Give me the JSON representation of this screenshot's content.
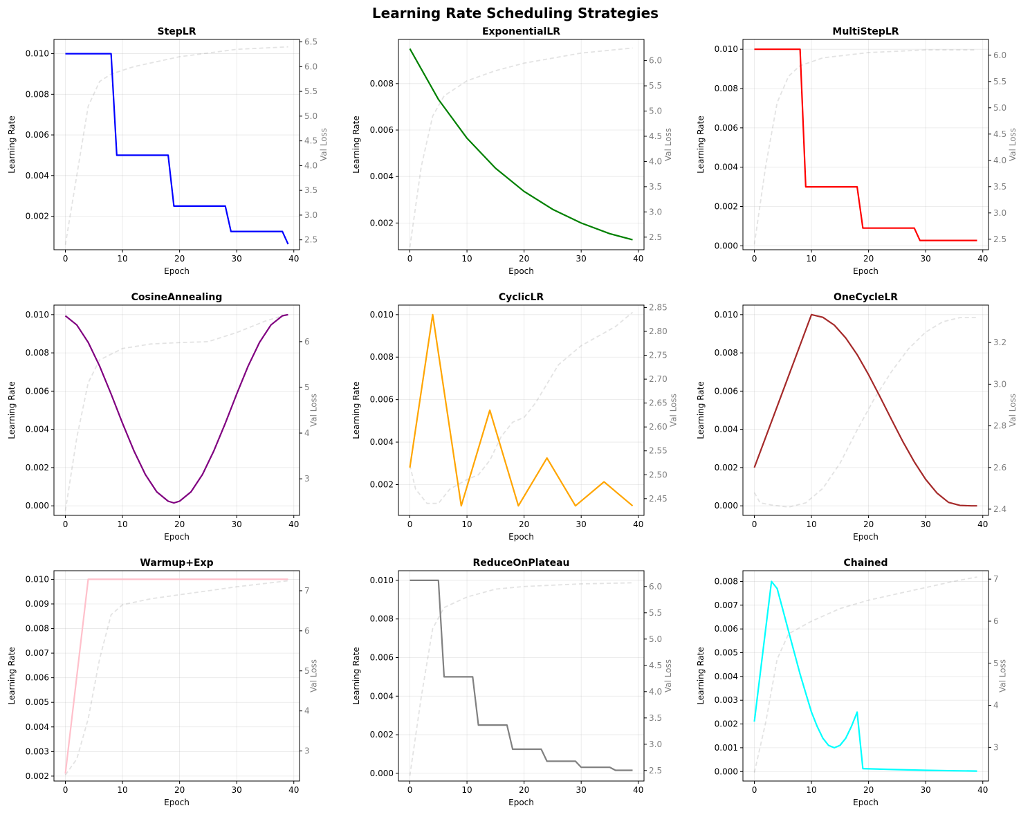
{
  "figure": {
    "title": "Learning Rate Scheduling Strategies"
  },
  "chart_data": [
    {
      "type": "line",
      "title": "StepLR",
      "xlabel": "Epoch",
      "ylabel": "Learning Rate",
      "y2label": "Val Loss",
      "xlim": [
        -2,
        41
      ],
      "ylim": [
        0.00035,
        0.0107
      ],
      "y2lim": [
        2.3,
        6.55
      ],
      "xticks": [
        0,
        10,
        20,
        30,
        40
      ],
      "yticks": [
        0.002,
        0.004,
        0.006,
        0.008,
        0.01
      ],
      "y2ticks": [
        2.5,
        3.0,
        3.5,
        4.0,
        4.5,
        5.0,
        5.5,
        6.0,
        6.5
      ],
      "ytickfmt": 3,
      "y2tickfmt": 1,
      "color": "#0000ff",
      "lr": [
        [
          0,
          0.01
        ],
        [
          8,
          0.01
        ],
        [
          9,
          0.005
        ],
        [
          18,
          0.005
        ],
        [
          19,
          0.0025
        ],
        [
          28,
          0.0025
        ],
        [
          29,
          0.00125
        ],
        [
          38,
          0.00125
        ],
        [
          39,
          0.000625
        ]
      ],
      "val": [
        [
          0,
          2.4
        ],
        [
          2,
          3.8
        ],
        [
          4,
          5.2
        ],
        [
          6,
          5.7
        ],
        [
          8,
          5.85
        ],
        [
          12,
          6.0
        ],
        [
          20,
          6.2
        ],
        [
          30,
          6.35
        ],
        [
          39,
          6.4
        ]
      ],
      "grid": true
    },
    {
      "type": "line",
      "title": "ExponentialLR",
      "xlabel": "Epoch",
      "ylabel": "Learning Rate",
      "y2label": "Val Loss",
      "xlim": [
        -2,
        41
      ],
      "ylim": [
        0.00085,
        0.0099
      ],
      "y2lim": [
        2.25,
        6.42
      ],
      "xticks": [
        0,
        10,
        20,
        30,
        40
      ],
      "yticks": [
        0.002,
        0.004,
        0.006,
        0.008
      ],
      "y2ticks": [
        2.5,
        3.0,
        3.5,
        4.0,
        4.5,
        5.0,
        5.5,
        6.0
      ],
      "ytickfmt": 3,
      "y2tickfmt": 1,
      "color": "#008000",
      "lr": [
        [
          0,
          0.0095
        ],
        [
          5,
          0.00732
        ],
        [
          10,
          0.00565
        ],
        [
          15,
          0.00436
        ],
        [
          20,
          0.00336
        ],
        [
          25,
          0.00259
        ],
        [
          30,
          0.002
        ],
        [
          35,
          0.00154
        ],
        [
          39,
          0.00128
        ]
      ],
      "val": [
        [
          0,
          2.3
        ],
        [
          2,
          3.9
        ],
        [
          4,
          4.9
        ],
        [
          6,
          5.3
        ],
        [
          10,
          5.6
        ],
        [
          15,
          5.8
        ],
        [
          20,
          5.95
        ],
        [
          30,
          6.15
        ],
        [
          39,
          6.25
        ]
      ],
      "grid": true
    },
    {
      "type": "line",
      "title": "MultiStepLR",
      "xlabel": "Epoch",
      "ylabel": "Learning Rate",
      "y2label": "Val Loss",
      "xlim": [
        -2,
        41
      ],
      "ylim": [
        -0.0002,
        0.0105
      ],
      "y2lim": [
        2.3,
        6.3
      ],
      "xticks": [
        0,
        10,
        20,
        30,
        40
      ],
      "yticks": [
        0.0,
        0.002,
        0.004,
        0.006,
        0.008,
        0.01
      ],
      "y2ticks": [
        2.5,
        3.0,
        3.5,
        4.0,
        4.5,
        5.0,
        5.5,
        6.0
      ],
      "ytickfmt": 3,
      "y2tickfmt": 1,
      "color": "#ff0000",
      "lr": [
        [
          0,
          0.01
        ],
        [
          8,
          0.01
        ],
        [
          9,
          0.003
        ],
        [
          18,
          0.003
        ],
        [
          19,
          0.0009
        ],
        [
          28,
          0.0009
        ],
        [
          29,
          0.00027
        ],
        [
          39,
          0.00027
        ]
      ],
      "val": [
        [
          0,
          2.4
        ],
        [
          2,
          3.9
        ],
        [
          4,
          5.1
        ],
        [
          6,
          5.6
        ],
        [
          8,
          5.8
        ],
        [
          12,
          5.95
        ],
        [
          20,
          6.05
        ],
        [
          30,
          6.1
        ],
        [
          39,
          6.1
        ]
      ],
      "grid": true
    },
    {
      "type": "line",
      "title": "CosineAnnealing",
      "xlabel": "Epoch",
      "ylabel": "Learning Rate",
      "y2label": "Val Loss",
      "xlim": [
        -2,
        41
      ],
      "ylim": [
        -0.0005,
        0.0105
      ],
      "y2lim": [
        2.2,
        6.8
      ],
      "xticks": [
        0,
        10,
        20,
        30,
        40
      ],
      "yticks": [
        0.0,
        0.002,
        0.004,
        0.006,
        0.008,
        0.01
      ],
      "y2ticks": [
        3,
        4,
        5,
        6
      ],
      "ytickfmt": 3,
      "y2tickfmt": 0,
      "color": "#800080",
      "lr": [
        [
          0,
          0.00994
        ],
        [
          2,
          0.00946
        ],
        [
          4,
          0.00855
        ],
        [
          6,
          0.00731
        ],
        [
          8,
          0.00585
        ],
        [
          10,
          0.00432
        ],
        [
          12,
          0.00288
        ],
        [
          14,
          0.00164
        ],
        [
          16,
          0.00073
        ],
        [
          18,
          0.00024
        ],
        [
          19,
          0.00015
        ],
        [
          20,
          0.00024
        ],
        [
          22,
          0.00073
        ],
        [
          24,
          0.00164
        ],
        [
          26,
          0.00288
        ],
        [
          28,
          0.00432
        ],
        [
          30,
          0.00585
        ],
        [
          32,
          0.00731
        ],
        [
          34,
          0.00855
        ],
        [
          36,
          0.00946
        ],
        [
          38,
          0.00994
        ],
        [
          39,
          0.01
        ]
      ],
      "val": [
        [
          0,
          2.3
        ],
        [
          2,
          3.9
        ],
        [
          4,
          5.1
        ],
        [
          6,
          5.6
        ],
        [
          10,
          5.85
        ],
        [
          15,
          5.95
        ],
        [
          20,
          5.98
        ],
        [
          25,
          6.0
        ],
        [
          30,
          6.2
        ],
        [
          35,
          6.45
        ],
        [
          39,
          6.6
        ]
      ],
      "grid": true
    },
    {
      "type": "line",
      "title": "CyclicLR",
      "xlabel": "Epoch",
      "ylabel": "Learning Rate",
      "y2label": "Val Loss",
      "xlim": [
        -2,
        41
      ],
      "ylim": [
        0.00055,
        0.01045
      ],
      "y2lim": [
        2.415,
        2.855
      ],
      "xticks": [
        0,
        10,
        20,
        30,
        40
      ],
      "yticks": [
        0.002,
        0.004,
        0.006,
        0.008,
        0.01
      ],
      "y2ticks": [
        2.45,
        2.5,
        2.55,
        2.6,
        2.65,
        2.7,
        2.75,
        2.8,
        2.85
      ],
      "ytickfmt": 3,
      "y2tickfmt": 2,
      "color": "#ffa500",
      "lr": [
        [
          0,
          0.0028
        ],
        [
          4,
          0.01
        ],
        [
          9,
          0.001
        ],
        [
          14,
          0.0055
        ],
        [
          19,
          0.001
        ],
        [
          24,
          0.00325
        ],
        [
          29,
          0.001
        ],
        [
          34,
          0.00213
        ],
        [
          39,
          0.001
        ]
      ],
      "val": [
        [
          0,
          2.52
        ],
        [
          1,
          2.47
        ],
        [
          3,
          2.44
        ],
        [
          5,
          2.44
        ],
        [
          7,
          2.47
        ],
        [
          10,
          2.49
        ],
        [
          12,
          2.5
        ],
        [
          14,
          2.53
        ],
        [
          16,
          2.58
        ],
        [
          18,
          2.61
        ],
        [
          20,
          2.62
        ],
        [
          22,
          2.65
        ],
        [
          24,
          2.69
        ],
        [
          26,
          2.73
        ],
        [
          28,
          2.75
        ],
        [
          30,
          2.77
        ],
        [
          33,
          2.79
        ],
        [
          36,
          2.81
        ],
        [
          39,
          2.84
        ]
      ],
      "grid": true
    },
    {
      "type": "line",
      "title": "OneCycleLR",
      "xlabel": "Epoch",
      "ylabel": "Learning Rate",
      "y2label": "Val Loss",
      "xlim": [
        -2,
        41
      ],
      "ylim": [
        -0.0005,
        0.0105
      ],
      "y2lim": [
        2.37,
        3.38
      ],
      "xticks": [
        0,
        10,
        20,
        30,
        40
      ],
      "yticks": [
        0.0,
        0.002,
        0.004,
        0.006,
        0.008,
        0.01
      ],
      "y2ticks": [
        2.4,
        2.6,
        2.8,
        3.0,
        3.2
      ],
      "ytickfmt": 3,
      "y2tickfmt": 1,
      "color": "#a52a2a",
      "lr": [
        [
          0,
          0.002
        ],
        [
          10,
          0.01
        ],
        [
          12,
          0.00986
        ],
        [
          14,
          0.00945
        ],
        [
          16,
          0.00878
        ],
        [
          18,
          0.00791
        ],
        [
          20,
          0.00686
        ],
        [
          22,
          0.00571
        ],
        [
          24,
          0.00452
        ],
        [
          26,
          0.00336
        ],
        [
          28,
          0.0023
        ],
        [
          30,
          0.00138
        ],
        [
          32,
          0.00066
        ],
        [
          34,
          0.00018
        ],
        [
          36,
          2e-05
        ],
        [
          38,
          0.0
        ],
        [
          39,
          0.0
        ]
      ],
      "val": [
        [
          0,
          2.48
        ],
        [
          1,
          2.43
        ],
        [
          3,
          2.42
        ],
        [
          6,
          2.41
        ],
        [
          9,
          2.43
        ],
        [
          12,
          2.5
        ],
        [
          15,
          2.62
        ],
        [
          18,
          2.78
        ],
        [
          21,
          2.93
        ],
        [
          24,
          3.06
        ],
        [
          27,
          3.17
        ],
        [
          30,
          3.25
        ],
        [
          33,
          3.3
        ],
        [
          36,
          3.32
        ],
        [
          39,
          3.32
        ]
      ],
      "grid": true
    },
    {
      "type": "line",
      "title": "Warmup+Exp",
      "xlabel": "Epoch",
      "ylabel": "Learning Rate",
      "y2label": "Val Loss",
      "xlim": [
        -2,
        41
      ],
      "ylim": [
        0.0018,
        0.01035
      ],
      "y2lim": [
        2.25,
        7.5
      ],
      "xticks": [
        0,
        10,
        20,
        30,
        40
      ],
      "yticks": [
        0.002,
        0.003,
        0.004,
        0.005,
        0.006,
        0.007,
        0.008,
        0.009,
        0.01
      ],
      "y2ticks": [
        3,
        4,
        5,
        6,
        7
      ],
      "ytickfmt": 3,
      "y2tickfmt": 0,
      "color": "#ffc0cb",
      "lr": [
        [
          0,
          0.0021
        ],
        [
          4,
          0.01
        ],
        [
          39,
          0.01
        ]
      ],
      "val": [
        [
          0,
          2.4
        ],
        [
          2,
          2.8
        ],
        [
          4,
          3.8
        ],
        [
          6,
          5.3
        ],
        [
          8,
          6.4
        ],
        [
          10,
          6.65
        ],
        [
          15,
          6.8
        ],
        [
          20,
          6.9
        ],
        [
          25,
          7.0
        ],
        [
          30,
          7.1
        ],
        [
          39,
          7.25
        ]
      ],
      "grid": true
    },
    {
      "type": "line",
      "title": "ReduceOnPlateau",
      "xlabel": "Epoch",
      "ylabel": "Learning Rate",
      "y2label": "Val Loss",
      "xlim": [
        -2,
        41
      ],
      "ylim": [
        -0.0004,
        0.0105
      ],
      "y2lim": [
        2.3,
        6.3
      ],
      "xticks": [
        0,
        10,
        20,
        30,
        40
      ],
      "yticks": [
        0.0,
        0.002,
        0.004,
        0.006,
        0.008,
        0.01
      ],
      "y2ticks": [
        2.5,
        3.0,
        3.5,
        4.0,
        4.5,
        5.0,
        5.5,
        6.0
      ],
      "ytickfmt": 3,
      "y2tickfmt": 1,
      "color": "#808080",
      "lr": [
        [
          0,
          0.01
        ],
        [
          5,
          0.01
        ],
        [
          6,
          0.005
        ],
        [
          11,
          0.005
        ],
        [
          12,
          0.0025
        ],
        [
          17,
          0.0025
        ],
        [
          18,
          0.00125
        ],
        [
          23,
          0.00125
        ],
        [
          24,
          0.000625
        ],
        [
          29,
          0.000625
        ],
        [
          30,
          0.0003125
        ],
        [
          35,
          0.0003125
        ],
        [
          36,
          0.00015625
        ],
        [
          39,
          0.00015625
        ]
      ],
      "val": [
        [
          0,
          2.4
        ],
        [
          2,
          3.9
        ],
        [
          4,
          5.2
        ],
        [
          6,
          5.6
        ],
        [
          10,
          5.8
        ],
        [
          15,
          5.95
        ],
        [
          20,
          6.0
        ],
        [
          30,
          6.05
        ],
        [
          39,
          6.07
        ]
      ],
      "grid": true
    },
    {
      "type": "line",
      "title": "Chained",
      "xlabel": "Epoch",
      "ylabel": "Learning Rate",
      "y2label": "Val Loss",
      "xlim": [
        -2,
        41
      ],
      "ylim": [
        -0.0004,
        0.00845
      ],
      "y2lim": [
        2.2,
        7.2
      ],
      "xticks": [
        0,
        10,
        20,
        30,
        40
      ],
      "yticks": [
        0.0,
        0.001,
        0.002,
        0.003,
        0.004,
        0.005,
        0.006,
        0.007,
        0.008
      ],
      "y2ticks": [
        3,
        4,
        5,
        6,
        7
      ],
      "ytickfmt": 3,
      "y2tickfmt": 0,
      "color": "#00ffff",
      "lr": [
        [
          0,
          0.0021
        ],
        [
          3,
          0.008
        ],
        [
          4,
          0.0077
        ],
        [
          5,
          0.0068
        ],
        [
          6,
          0.0059
        ],
        [
          7,
          0.005
        ],
        [
          8,
          0.0041
        ],
        [
          9,
          0.0033
        ],
        [
          10,
          0.0025
        ],
        [
          11,
          0.0019
        ],
        [
          12,
          0.0014
        ],
        [
          13,
          0.0011
        ],
        [
          14,
          0.001
        ],
        [
          15,
          0.0011
        ],
        [
          16,
          0.0014
        ],
        [
          17,
          0.0019
        ],
        [
          18,
          0.0025
        ],
        [
          19,
          0.00012
        ],
        [
          25,
          8e-05
        ],
        [
          30,
          5e-05
        ],
        [
          35,
          3e-05
        ],
        [
          39,
          2e-05
        ]
      ],
      "val": [
        [
          0,
          2.4
        ],
        [
          2,
          3.6
        ],
        [
          4,
          5.1
        ],
        [
          6,
          5.7
        ],
        [
          10,
          6.0
        ],
        [
          15,
          6.3
        ],
        [
          20,
          6.5
        ],
        [
          25,
          6.65
        ],
        [
          30,
          6.8
        ],
        [
          35,
          6.95
        ],
        [
          39,
          7.05
        ]
      ],
      "grid": true
    }
  ]
}
